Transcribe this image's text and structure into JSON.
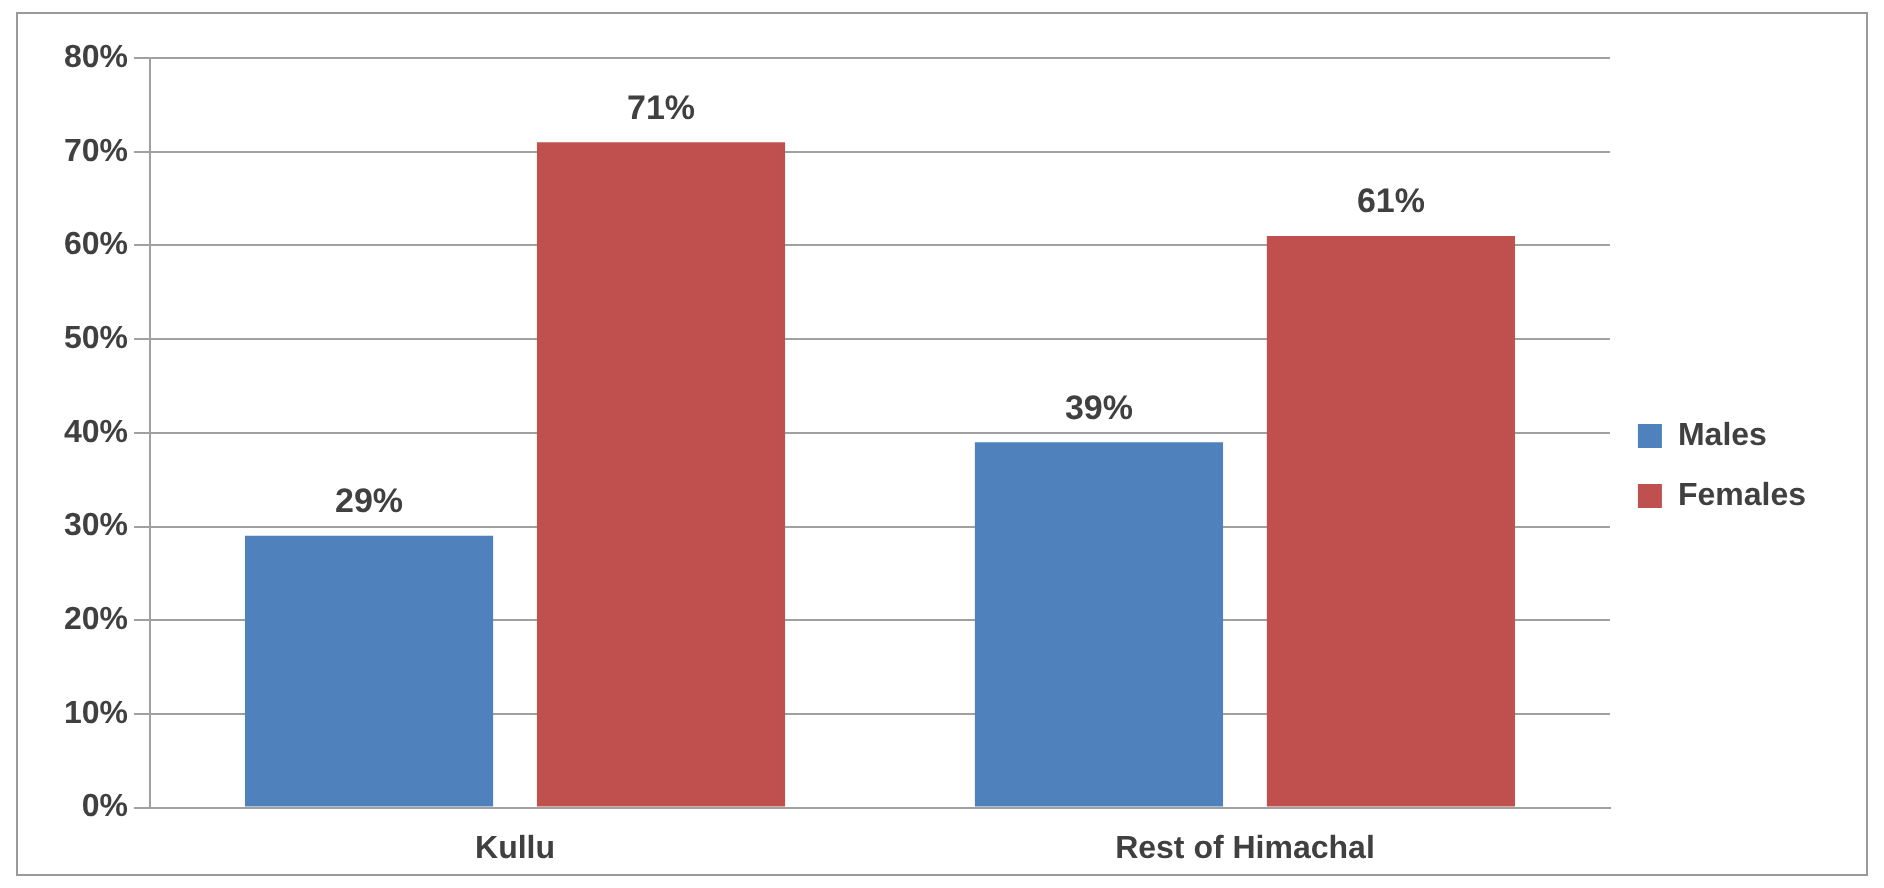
{
  "chart_data": {
    "type": "bar",
    "categories": [
      "Kullu",
      "Rest of Himachal"
    ],
    "series": [
      {
        "name": "Males",
        "color": "#4f81bd",
        "values": [
          29,
          39
        ],
        "value_labels": [
          "29%",
          "39%"
        ]
      },
      {
        "name": "Females",
        "color": "#c0504d",
        "values": [
          71,
          61
        ],
        "value_labels": [
          "71%",
          "61%"
        ]
      }
    ],
    "ylim": [
      0,
      80
    ],
    "yticks": [
      {
        "value": 0,
        "label": "0%"
      },
      {
        "value": 10,
        "label": "10%"
      },
      {
        "value": 20,
        "label": "20%"
      },
      {
        "value": 30,
        "label": "30%"
      },
      {
        "value": 40,
        "label": "40%"
      },
      {
        "value": 50,
        "label": "50%"
      },
      {
        "value": 60,
        "label": "60%"
      },
      {
        "value": 70,
        "label": "70%"
      },
      {
        "value": 80,
        "label": "80%"
      }
    ],
    "grid": "y",
    "legend": "right"
  }
}
